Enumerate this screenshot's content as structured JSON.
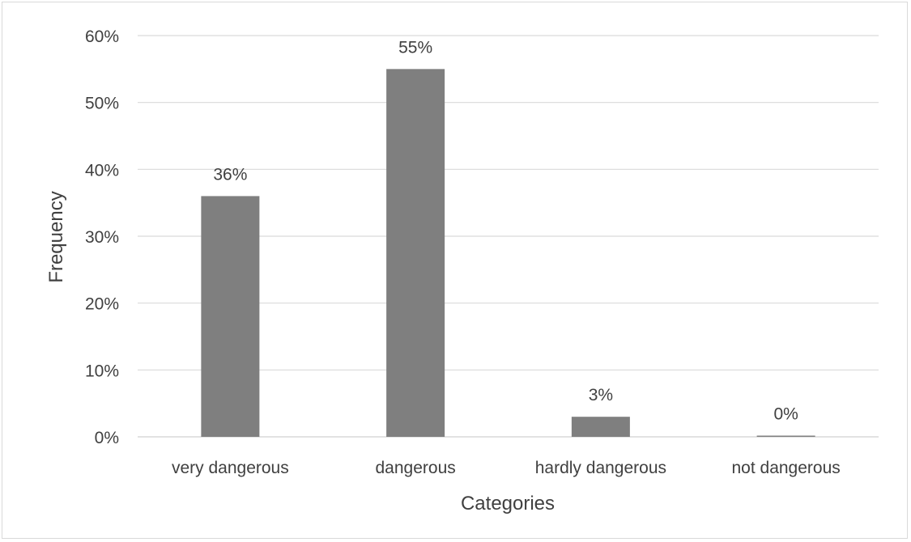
{
  "chart_data": {
    "type": "bar",
    "categories": [
      "very dangerous",
      "dangerous",
      "hardly dangerous",
      "not dangerous"
    ],
    "values": [
      36,
      55,
      3,
      0
    ],
    "data_labels": [
      "36%",
      "55%",
      "3%",
      "0%"
    ],
    "xlabel": "Categories",
    "ylabel": "Frequency",
    "ylim": [
      0,
      60
    ],
    "yticks": [
      0,
      10,
      20,
      30,
      40,
      50,
      60
    ],
    "ytick_labels": [
      "0%",
      "10%",
      "20%",
      "30%",
      "40%",
      "50%",
      "60%"
    ],
    "grid": true,
    "legend": "none",
    "colors": {
      "bar": "#7f7f7f",
      "grid": "#d9d9d9",
      "text": "#404040"
    }
  }
}
